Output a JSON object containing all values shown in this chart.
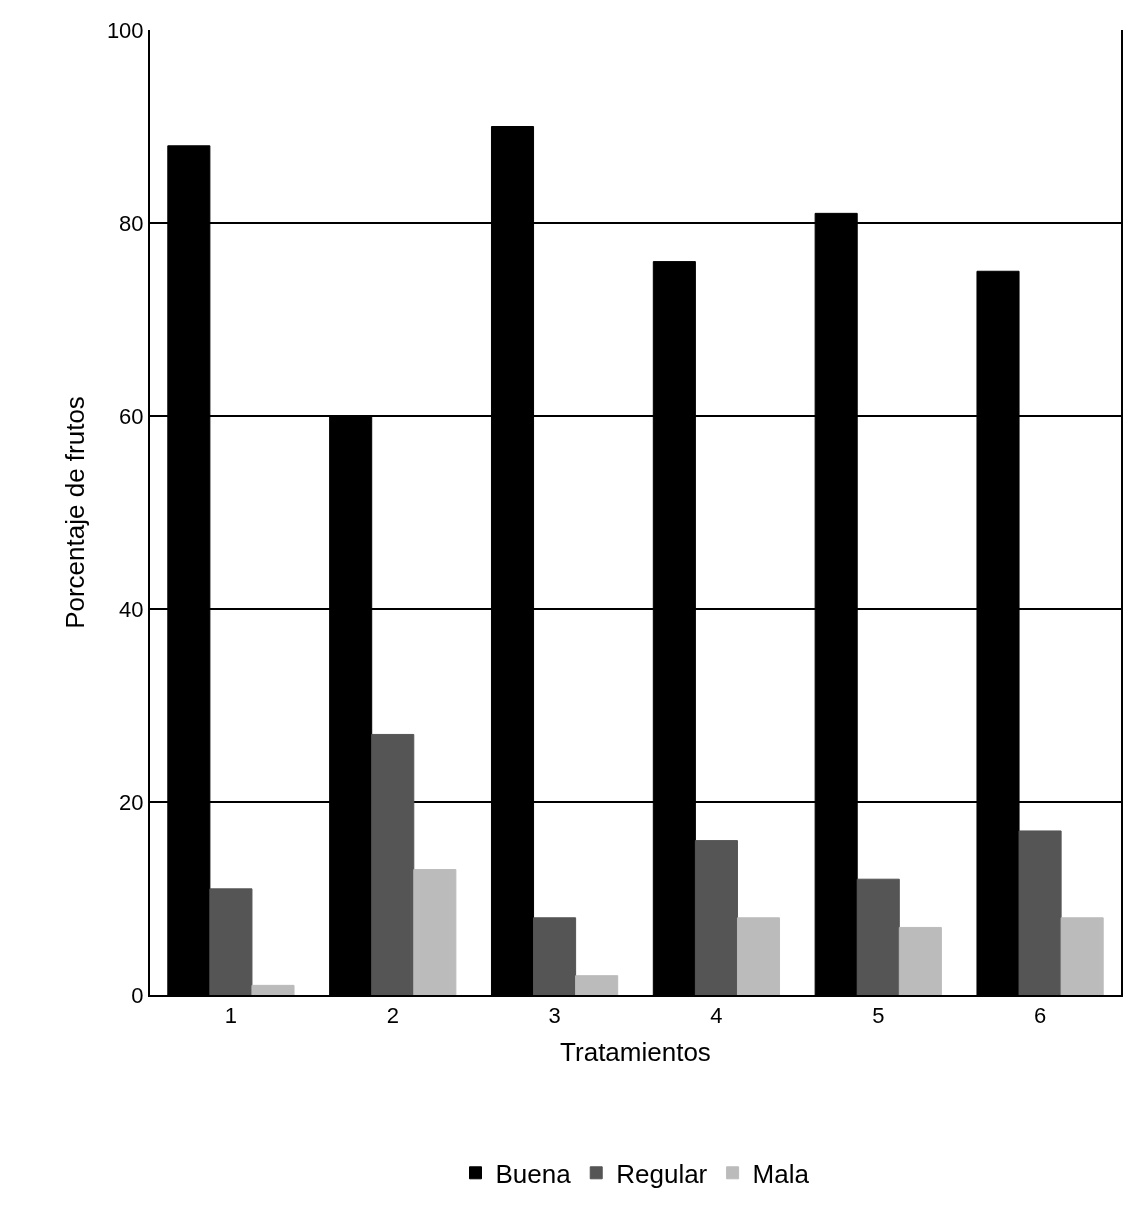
{
  "chart_data": {
    "type": "bar",
    "xlabel": "Tratamientos",
    "ylabel": "Porcentaje de frutos",
    "categories": [
      "1",
      "2",
      "3",
      "4",
      "5",
      "6"
    ],
    "series": [
      {
        "name": "Buena",
        "color": "#000000",
        "values": [
          88,
          60,
          90,
          76,
          81,
          75
        ]
      },
      {
        "name": "Regular",
        "color": "#555555",
        "values": [
          11,
          27,
          8,
          16,
          12,
          17
        ]
      },
      {
        "name": "Mala",
        "color": "#bbbbbb",
        "values": [
          1,
          13,
          2,
          8,
          7,
          8
        ]
      }
    ],
    "ylim": [
      0,
      100
    ],
    "yticks": [
      0,
      20,
      40,
      60,
      80,
      100
    ],
    "grid": "y",
    "legend": "bottom"
  }
}
